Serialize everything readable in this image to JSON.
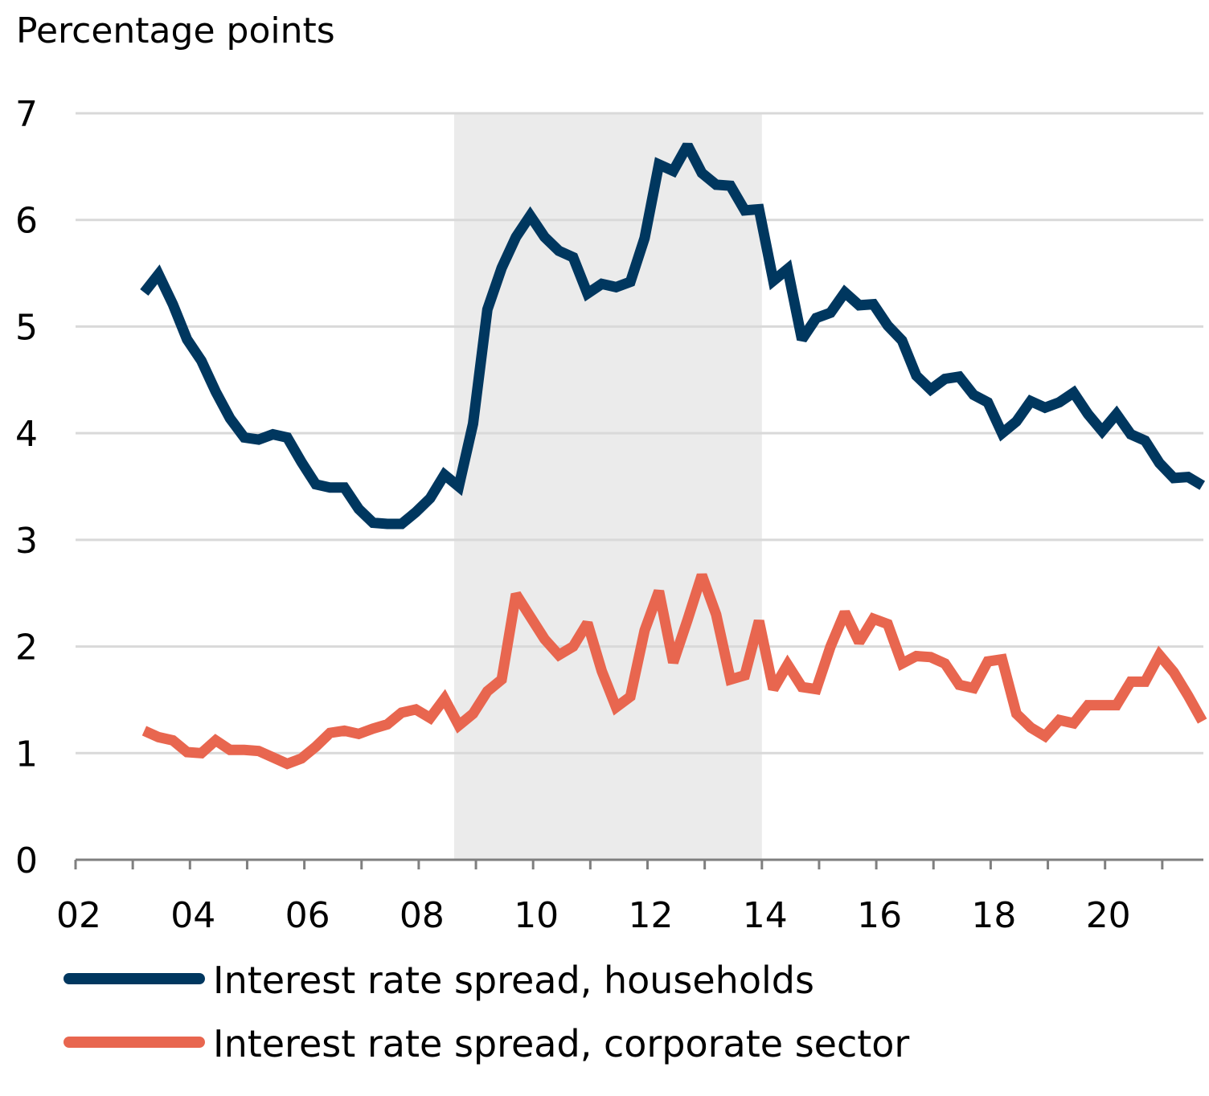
{
  "chart_data": {
    "type": "line",
    "title": "",
    "ylabel": "Percentage points",
    "xlabel": "",
    "ylim": [
      0,
      7
    ],
    "xlim": [
      2002,
      2021.75
    ],
    "yticks": [
      0,
      1,
      2,
      3,
      4,
      5,
      6,
      7
    ],
    "xticks": [
      2002,
      2004,
      2006,
      2008,
      2010,
      2012,
      2014,
      2016,
      2018,
      2020
    ],
    "xtick_labels": [
      "02",
      "04",
      "06",
      "08",
      "10",
      "12",
      "14",
      "16",
      "18",
      "20"
    ],
    "grid": "horizontal",
    "shaded_region": [
      2008.62,
      2014.0
    ],
    "x_start": 2003.2,
    "x_step": 0.25,
    "legend_position": "bottom-left",
    "series": [
      {
        "name": "Interest rate spread, households",
        "color": "#00375F",
        "values": [
          5.32,
          5.49,
          5.21,
          4.88,
          4.68,
          4.39,
          4.14,
          3.96,
          3.94,
          3.99,
          3.96,
          3.73,
          3.52,
          3.49,
          3.49,
          3.29,
          3.16,
          3.15,
          3.15,
          3.26,
          3.39,
          3.61,
          3.5,
          4.09,
          5.16,
          5.55,
          5.84,
          6.04,
          5.84,
          5.71,
          5.65,
          5.31,
          5.4,
          5.37,
          5.42,
          5.83,
          6.52,
          6.46,
          6.7,
          6.44,
          6.33,
          6.32,
          6.09,
          6.1,
          5.43,
          5.54,
          4.88,
          5.08,
          5.13,
          5.32,
          5.2,
          5.21,
          5.01,
          4.87,
          4.54,
          4.41,
          4.51,
          4.53,
          4.36,
          4.29,
          4.0,
          4.11,
          4.3,
          4.24,
          4.29,
          4.38,
          4.18,
          4.02,
          4.18,
          3.99,
          3.93,
          3.72,
          3.58,
          3.59,
          3.51
        ]
      },
      {
        "name": "Interest rate spread, corporate sector",
        "color": "#E8664F",
        "values": [
          1.21,
          1.15,
          1.12,
          1.01,
          1.0,
          1.12,
          1.03,
          1.03,
          1.02,
          0.96,
          0.9,
          0.95,
          1.06,
          1.19,
          1.21,
          1.18,
          1.23,
          1.27,
          1.38,
          1.41,
          1.33,
          1.51,
          1.26,
          1.37,
          1.58,
          1.69,
          2.49,
          2.28,
          2.07,
          1.92,
          2.0,
          2.22,
          1.77,
          1.43,
          1.53,
          2.15,
          2.52,
          1.85,
          2.25,
          2.67,
          2.3,
          1.69,
          1.73,
          2.24,
          1.6,
          1.83,
          1.62,
          1.6,
          2.0,
          2.32,
          2.04,
          2.26,
          2.21,
          1.84,
          1.91,
          1.9,
          1.84,
          1.64,
          1.61,
          1.86,
          1.88,
          1.37,
          1.24,
          1.16,
          1.31,
          1.28,
          1.45,
          1.45,
          1.45,
          1.67,
          1.67,
          1.92,
          1.76,
          1.54,
          1.3
        ]
      }
    ]
  }
}
